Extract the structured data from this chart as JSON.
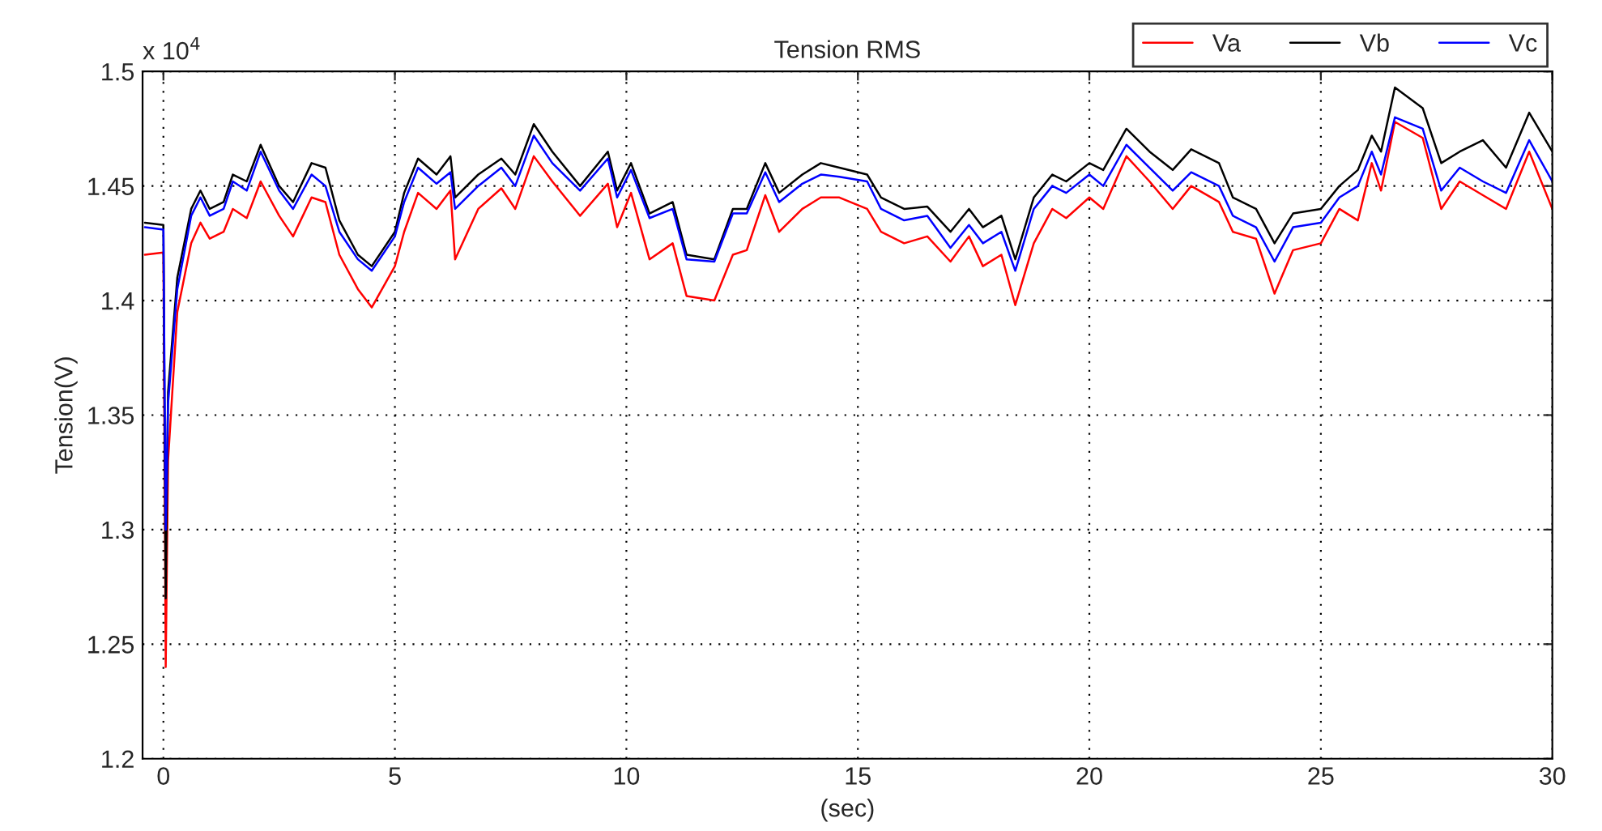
{
  "chart_data": {
    "type": "line",
    "title": "Tension RMS",
    "xlabel": "(sec)",
    "ylabel": "Tension(V)",
    "annotations": [
      "x 10$^{4}$"
    ],
    "x": [
      -0.4,
      0,
      0.05,
      0.1,
      0.3,
      0.6,
      0.8,
      1.0,
      1.3,
      1.5,
      1.8,
      2.1,
      2.5,
      2.8,
      3.2,
      3.5,
      3.8,
      4.2,
      4.5,
      5.0,
      5.2,
      5.5,
      5.9,
      6.2,
      6.3,
      6.8,
      7.3,
      7.6,
      8.0,
      8.4,
      9.0,
      9.6,
      9.8,
      10.1,
      10.5,
      11.0,
      11.3,
      11.9,
      12.3,
      12.6,
      13.0,
      13.3,
      13.8,
      14.2,
      14.6,
      15.2,
      15.5,
      16.0,
      16.5,
      17.0,
      17.4,
      17.7,
      18.1,
      18.4,
      18.8,
      19.2,
      19.5,
      20.0,
      20.3,
      20.8,
      21.3,
      21.8,
      22.2,
      22.8,
      23.1,
      23.6,
      24.0,
      24.4,
      25.0,
      25.4,
      25.8,
      26.1,
      26.3,
      26.6,
      27.2,
      27.6,
      28.0,
      28.5,
      29.0,
      29.5,
      30.0
    ],
    "series": [
      {
        "name": "Va",
        "color": "#ff0000",
        "values": [
          1.42,
          1.421,
          1.24,
          1.33,
          1.395,
          1.425,
          1.434,
          1.427,
          1.43,
          1.44,
          1.436,
          1.452,
          1.437,
          1.428,
          1.445,
          1.443,
          1.42,
          1.405,
          1.397,
          1.415,
          1.43,
          1.447,
          1.44,
          1.448,
          1.418,
          1.44,
          1.449,
          1.44,
          1.463,
          1.452,
          1.437,
          1.451,
          1.432,
          1.447,
          1.418,
          1.425,
          1.402,
          1.4,
          1.42,
          1.422,
          1.446,
          1.43,
          1.44,
          1.445,
          1.445,
          1.44,
          1.43,
          1.425,
          1.428,
          1.417,
          1.428,
          1.415,
          1.42,
          1.398,
          1.425,
          1.44,
          1.436,
          1.445,
          1.44,
          1.463,
          1.452,
          1.44,
          1.45,
          1.443,
          1.43,
          1.427,
          1.403,
          1.422,
          1.425,
          1.44,
          1.435,
          1.46,
          1.448,
          1.478,
          1.471,
          1.44,
          1.452,
          1.446,
          1.44,
          1.465,
          1.44
        ]
      },
      {
        "name": "Vb",
        "color": "#000000",
        "values": [
          1.434,
          1.433,
          1.27,
          1.36,
          1.41,
          1.44,
          1.448,
          1.44,
          1.443,
          1.455,
          1.452,
          1.468,
          1.45,
          1.443,
          1.46,
          1.458,
          1.435,
          1.42,
          1.415,
          1.43,
          1.447,
          1.462,
          1.455,
          1.463,
          1.445,
          1.455,
          1.462,
          1.455,
          1.477,
          1.465,
          1.45,
          1.465,
          1.448,
          1.46,
          1.438,
          1.443,
          1.42,
          1.418,
          1.44,
          1.44,
          1.46,
          1.447,
          1.455,
          1.46,
          1.458,
          1.455,
          1.445,
          1.44,
          1.441,
          1.43,
          1.44,
          1.432,
          1.437,
          1.418,
          1.445,
          1.455,
          1.452,
          1.46,
          1.457,
          1.475,
          1.465,
          1.457,
          1.466,
          1.46,
          1.445,
          1.44,
          1.425,
          1.438,
          1.44,
          1.45,
          1.457,
          1.472,
          1.465,
          1.493,
          1.484,
          1.46,
          1.465,
          1.47,
          1.458,
          1.482,
          1.465
        ]
      },
      {
        "name": "Vc",
        "color": "#0000ff",
        "values": [
          1.432,
          1.431,
          1.3,
          1.355,
          1.405,
          1.437,
          1.445,
          1.437,
          1.44,
          1.452,
          1.448,
          1.465,
          1.448,
          1.44,
          1.455,
          1.45,
          1.43,
          1.418,
          1.413,
          1.428,
          1.443,
          1.458,
          1.451,
          1.456,
          1.44,
          1.45,
          1.458,
          1.45,
          1.472,
          1.46,
          1.448,
          1.462,
          1.445,
          1.457,
          1.436,
          1.44,
          1.418,
          1.417,
          1.438,
          1.438,
          1.456,
          1.443,
          1.451,
          1.455,
          1.454,
          1.452,
          1.44,
          1.435,
          1.437,
          1.423,
          1.433,
          1.425,
          1.43,
          1.413,
          1.44,
          1.45,
          1.447,
          1.455,
          1.45,
          1.468,
          1.458,
          1.448,
          1.456,
          1.45,
          1.437,
          1.432,
          1.417,
          1.432,
          1.434,
          1.445,
          1.45,
          1.465,
          1.455,
          1.48,
          1.475,
          1.448,
          1.458,
          1.452,
          1.447,
          1.47,
          1.452
        ]
      }
    ],
    "xlim": [
      -0.45,
      30
    ],
    "xticks": [
      0,
      5,
      10,
      15,
      20,
      25,
      30
    ],
    "ylim": [
      1.2,
      1.5
    ],
    "yticks": [
      1.2,
      1.25,
      1.3,
      1.35,
      1.4,
      1.45,
      1.5
    ],
    "grid": true,
    "legend": "top right"
  }
}
